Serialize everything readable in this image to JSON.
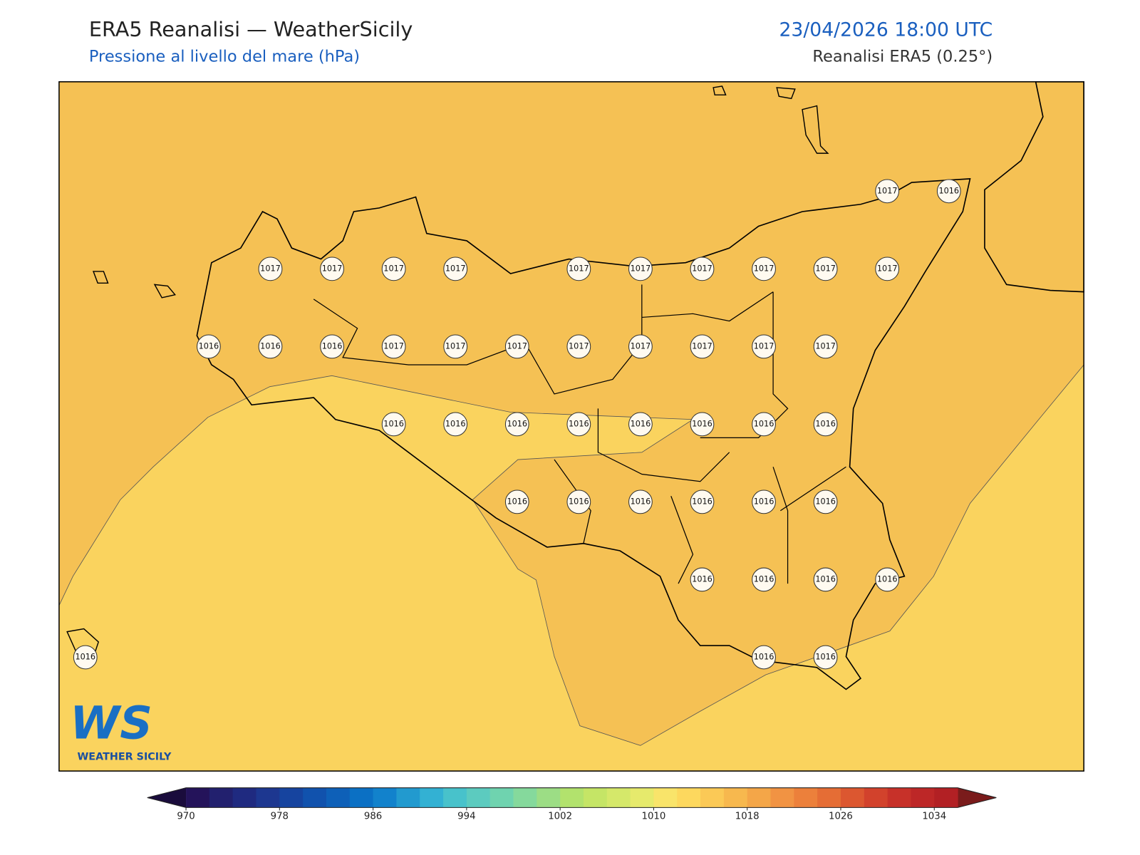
{
  "header": {
    "title": "ERA5 Reanalisi — WeatherSicily",
    "subtitle": "Pressione al livello del mare (hPa)",
    "datetime": "23/04/2026 18:00 UTC",
    "source": "Reanalisi ERA5 (0.25°)"
  },
  "map": {
    "base_color": "#f5c154",
    "light_color": "#fad35e",
    "stations": [
      [
        null,
        null,
        null,
        null,
        null,
        null,
        null,
        null,
        null,
        null,
        null,
        null,
        null,
        1017,
        1016
      ],
      [
        null,
        null,
        null,
        1017,
        1017,
        1017,
        1017,
        null,
        1017,
        1017,
        1017,
        1017,
        1017,
        1017,
        null
      ],
      [
        null,
        null,
        1016,
        1016,
        1016,
        1017,
        1017,
        1017,
        1017,
        1017,
        1017,
        1017,
        1017,
        null,
        null
      ],
      [
        null,
        null,
        null,
        null,
        null,
        1016,
        1016,
        1016,
        1016,
        1016,
        1016,
        1016,
        1016,
        null,
        null
      ],
      [
        null,
        null,
        null,
        null,
        null,
        null,
        null,
        1016,
        1016,
        1016,
        1016,
        1016,
        1016,
        null,
        null
      ],
      [
        null,
        null,
        null,
        null,
        null,
        null,
        null,
        null,
        null,
        null,
        1016,
        1016,
        1016,
        1016,
        null
      ],
      [
        1016,
        null,
        null,
        null,
        null,
        null,
        null,
        null,
        null,
        null,
        null,
        1016,
        1016,
        null,
        null
      ]
    ]
  },
  "colorbar": {
    "lim": [
      970,
      1036
    ],
    "ticks": [
      970,
      978,
      986,
      994,
      1002,
      1010,
      1018,
      1026,
      1034
    ],
    "under_color": "#1a0c3c",
    "over_color": "#7a1b1b",
    "colors": [
      "#24135a",
      "#22206e",
      "#1f2a80",
      "#1d3790",
      "#16449f",
      "#1152ad",
      "#0e60b8",
      "#0b70c4",
      "#1282cc",
      "#229acf",
      "#33b1d3",
      "#48c2cb",
      "#5ccbbf",
      "#6fd3af",
      "#85d99c",
      "#9cdd85",
      "#b2e26d",
      "#c5e566",
      "#d5e86a",
      "#e6ea6c",
      "#f9e46a",
      "#fdd85e",
      "#fbc956",
      "#f7b84e",
      "#f4a648",
      "#f19343",
      "#ec803b",
      "#e56d35",
      "#dc5730",
      "#d2422c",
      "#c73129",
      "#bd2727",
      "#b22024"
    ]
  },
  "logo": {
    "letters": "WS",
    "name": "WEATHER SICILY"
  }
}
